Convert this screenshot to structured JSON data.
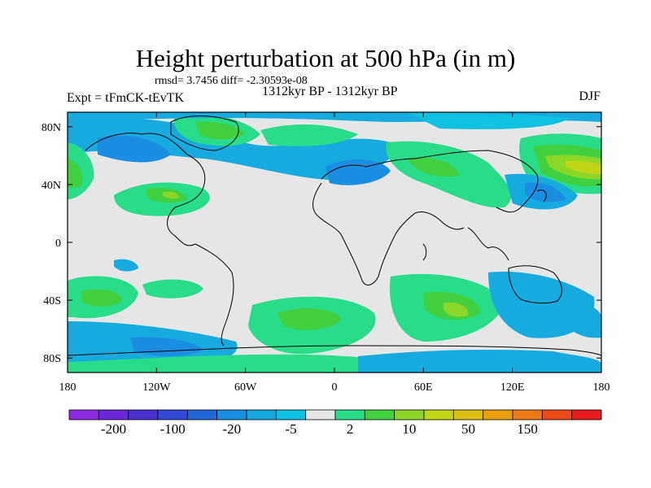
{
  "title": "Height perturbation at 500 hPa (in m)",
  "stats": "rmsd= 3.7456 diff= -2.30593e-08",
  "experiment": "Expt = tFmCK-tEvTK",
  "period": "1312kyr BP - 1312kyr BP",
  "season": "DJF",
  "axes": {
    "lon_labels": [
      "180",
      "120W",
      "60W",
      "0",
      "60E",
      "120E",
      "180"
    ],
    "lat_labels": [
      "80N",
      "40N",
      "0",
      "40S",
      "80S"
    ]
  },
  "colorbar": {
    "colors": [
      "#8a2be2",
      "#6a28d8",
      "#4a2fd0",
      "#2f4ad6",
      "#2266d8",
      "#1a8ee0",
      "#16aadf",
      "#0fc0e0",
      "#e6e6e6",
      "#28dc8a",
      "#40d040",
      "#8cd628",
      "#c0d418",
      "#dcc010",
      "#e8a010",
      "#ec7818",
      "#ec4a18",
      "#e81c1c"
    ],
    "labels": [
      "-200",
      "-100",
      "-20",
      "-5",
      "2",
      "10",
      "50",
      "150"
    ]
  },
  "colors": {
    "background": "#e6e6e6",
    "coast": "#000000"
  }
}
